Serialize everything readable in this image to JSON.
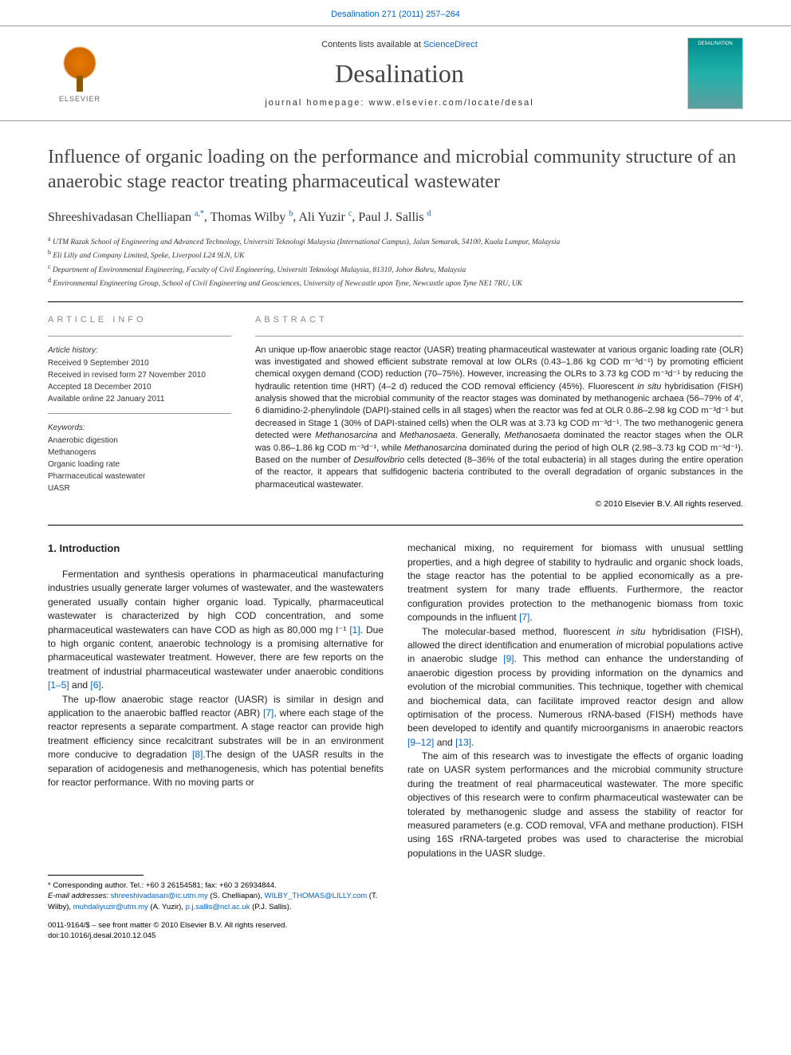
{
  "header": {
    "citation_link": "Desalination 271 (2011) 257–264",
    "contents_prefix": "Contents lists available at ",
    "contents_link": "ScienceDirect",
    "journal_name": "Desalination",
    "homepage_label": "journal homepage: www.elsevier.com/locate/desal",
    "elsevier_label": "ELSEVIER",
    "cover_label": "DESALINATION"
  },
  "title": "Influence of organic loading on the performance and microbial community structure of an anaerobic stage reactor treating pharmaceutical wastewater",
  "authors": [
    {
      "name": "Shreeshivadasan Chelliapan",
      "mark": "a,*"
    },
    {
      "name": "Thomas Wilby",
      "mark": "b"
    },
    {
      "name": "Ali Yuzir",
      "mark": "c"
    },
    {
      "name": "Paul J. Sallis",
      "mark": "d"
    }
  ],
  "affiliations": [
    {
      "mark": "a",
      "text": "UTM Razak School of Engineering and Advanced Technology, Universiti Teknologi Malaysia (International Campus), Jalan Semarak, 54100, Kuala Lumpur, Malaysia"
    },
    {
      "mark": "b",
      "text": "Eli Lilly and Company Limited, Speke, Liverpool L24 9LN, UK"
    },
    {
      "mark": "c",
      "text": "Department of Environmental Engineering, Faculty of Civil Engineering, Universiti Teknologi Malaysia, 81310, Johor Bahru, Malaysia"
    },
    {
      "mark": "d",
      "text": "Environmental Engineering Group, School of Civil Engineering and Geosciences, University of Newcastle upon Tyne, Newcastle upon Tyne NE1 7RU, UK"
    }
  ],
  "article_info": {
    "label": "ARTICLE INFO",
    "history_head": "Article history:",
    "history": [
      "Received 9 September 2010",
      "Received in revised form 27 November 2010",
      "Accepted 18 December 2010",
      "Available online 22 January 2011"
    ],
    "keywords_head": "Keywords:",
    "keywords": [
      "Anaerobic digestion",
      "Methanogens",
      "Organic loading rate",
      "Pharmaceutical wastewater",
      "UASR"
    ]
  },
  "abstract": {
    "label": "ABSTRACT",
    "text": "An unique up-flow anaerobic stage reactor (UASR) treating pharmaceutical wastewater at various organic loading rate (OLR) was investigated and showed efficient substrate removal at low OLRs (0.43–1.86 kg COD m⁻³d⁻¹) by promoting efficient chemical oxygen demand (COD) reduction (70–75%). However, increasing the OLRs to 3.73 kg COD m⁻³d⁻¹ by reducing the hydraulic retention time (HRT) (4–2 d) reduced the COD removal efficiency (45%). Fluorescent in situ hybridisation (FISH) analysis showed that the microbial community of the reactor stages was dominated by methanogenic archaea (56–79% of 4′, 6 diamidino-2-phenylindole (DAPI)-stained cells in all stages) when the reactor was fed at OLR 0.86–2.98 kg COD m⁻³d⁻¹ but decreased in Stage 1 (30% of DAPI-stained cells) when the OLR was at 3.73 kg COD m⁻³d⁻¹. The two methanogenic genera detected were Methanosarcina and Methanosaeta. Generally, Methanosaeta dominated the reactor stages when the OLR was 0.86–1.86 kg COD m⁻³d⁻¹, while Methanosarcina dominated during the period of high OLR (2.98–3.73 kg COD m⁻³d⁻¹). Based on the number of Desulfovibrio cells detected (8–36% of the total eubacteria) in all stages during the entire operation of the reactor, it appears that sulfidogenic bacteria contributed to the overall degradation of organic substances in the pharmaceutical wastewater.",
    "copyright": "© 2010 Elsevier B.V. All rights reserved."
  },
  "body": {
    "section_number": "1.",
    "section_title": "Introduction",
    "left_paras": [
      "Fermentation and synthesis operations in pharmaceutical manufacturing industries usually generate larger volumes of wastewater, and the wastewaters generated usually contain higher organic load. Typically, pharmaceutical wastewater is characterized by high COD concentration, and some pharmaceutical wastewaters can have COD as high as 80,000 mg l⁻¹ [1]. Due to high organic content, anaerobic technology is a promising alternative for pharmaceutical wastewater treatment. However, there are few reports on the treatment of industrial pharmaceutical wastewater under anaerobic conditions [1–5] and [6].",
      "The up-flow anaerobic stage reactor (UASR) is similar in design and application to the anaerobic baffled reactor (ABR) [7], where each stage of the reactor represents a separate compartment. A stage reactor can provide high treatment efficiency since recalcitrant substrates will be in an environment more conducive to degradation [8].The design of the UASR results in the separation of acidogenesis and methanogenesis, which has potential benefits for reactor performance. With no moving parts or"
    ],
    "right_paras": [
      "mechanical mixing, no requirement for biomass with unusual settling properties, and a high degree of stability to hydraulic and organic shock loads, the stage reactor has the potential to be applied economically as a pre-treatment system for many trade effluents. Furthermore, the reactor configuration provides protection to the methanogenic biomass from toxic compounds in the influent [7].",
      "The molecular-based method, fluorescent in situ hybridisation (FISH), allowed the direct identification and enumeration of microbial populations active in anaerobic sludge [9]. This method can enhance the understanding of anaerobic digestion process by providing information on the dynamics and evolution of the microbial communities. This technique, together with chemical and biochemical data, can facilitate improved reactor design and allow optimisation of the process. Numerous rRNA-based (FISH) methods have been developed to identify and quantify microorganisms in anaerobic reactors [9–12] and [13].",
      "The aim of this research was to investigate the effects of organic loading rate on UASR system performances and the microbial community structure during the treatment of real pharmaceutical wastewater. The more specific objectives of this research were to confirm pharmaceutical wastewater can be tolerated by methanogenic sludge and assess the stability of reactor for measured parameters (e.g. COD removal, VFA and methane production). FISH using 16S rRNA-targeted probes was used to characterise the microbial populations in the UASR sludge."
    ]
  },
  "footnotes": {
    "corresponding": "* Corresponding author. Tel.: +60 3 26154581; fax: +60 3 26934844.",
    "emails_label": "E-mail addresses:",
    "emails": [
      {
        "addr": "shreeshivadasan@ic.utm.my",
        "who": "(S. Chelliapan),"
      },
      {
        "addr": "WILBY_THOMAS@LILLY.com",
        "who": "(T. Wilby),"
      },
      {
        "addr": "muhdaliyuzir@utm.my",
        "who": "(A. Yuzir),"
      },
      {
        "addr": "p.j.sallis@ncl.ac.uk",
        "who": "(P.J. Sallis)."
      }
    ],
    "issn_line": "0011-9164/$ – see front matter © 2010 Elsevier B.V. All rights reserved.",
    "doi_line": "doi:10.1016/j.desal.2010.12.045"
  },
  "colors": {
    "link": "#0066cc",
    "text": "#222222",
    "muted": "#888888",
    "rule": "#000000"
  }
}
